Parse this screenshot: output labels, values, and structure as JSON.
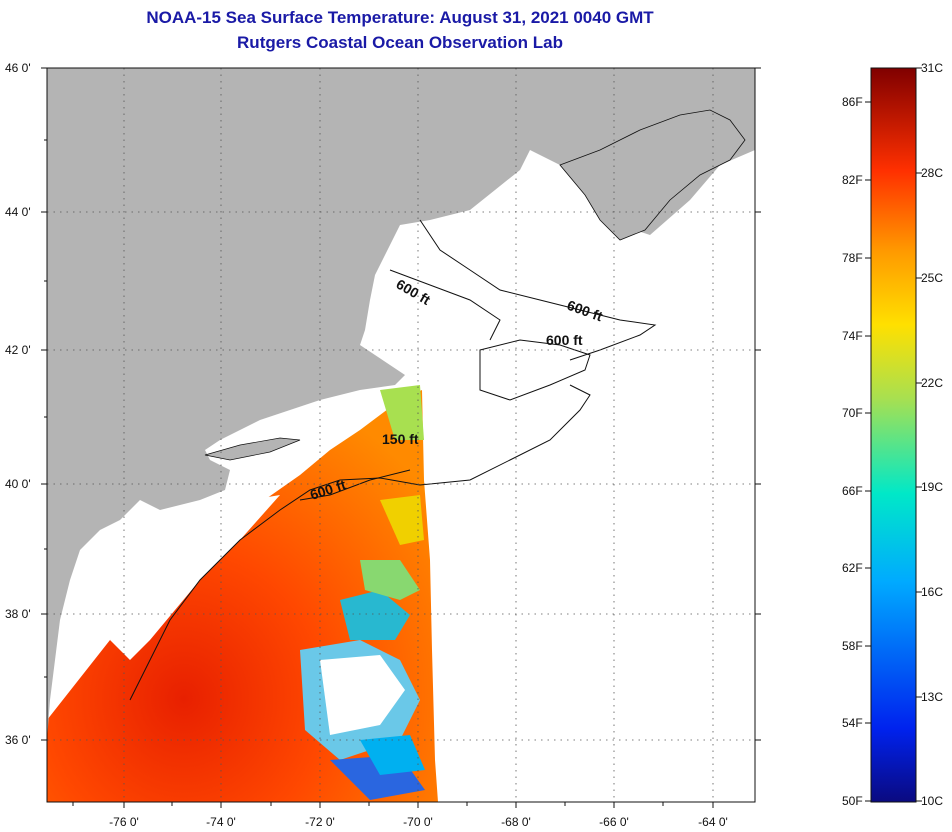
{
  "title": "NOAA-15 Sea Surface Temperature:  August 31, 2021 0040 GMT",
  "subtitle": "Rutgers Coastal Ocean Observation Lab",
  "lat_ticks": [
    "46 0'",
    "44 0'",
    "42 0'",
    "40 0'",
    "38 0'",
    "36 0'"
  ],
  "lon_ticks": [
    "-76 0'",
    "-74 0'",
    "-72 0'",
    "-70 0'",
    "-68 0'",
    "-66 0'",
    "-64 0'"
  ],
  "contour_labels": [
    "600 ft",
    "600 ft",
    "600 ft",
    "150 ft",
    "600 ft"
  ],
  "colorbar": {
    "f_labels": [
      "86F",
      "82F",
      "78F",
      "74F",
      "70F",
      "66F",
      "62F",
      "58F",
      "54F",
      "50F"
    ],
    "c_labels": [
      "31C",
      "28C",
      "25C",
      "22C",
      "19C",
      "16C",
      "13C",
      "10C"
    ],
    "colors": [
      "#0a0a80",
      "#0033ff",
      "#00ccff",
      "#a0e060",
      "#ffe000",
      "#ff8800",
      "#ff2000",
      "#880000"
    ]
  },
  "colors": {
    "land": "#b4b4b4",
    "no_data": "#ffffff",
    "title": "#1a1aa6"
  }
}
